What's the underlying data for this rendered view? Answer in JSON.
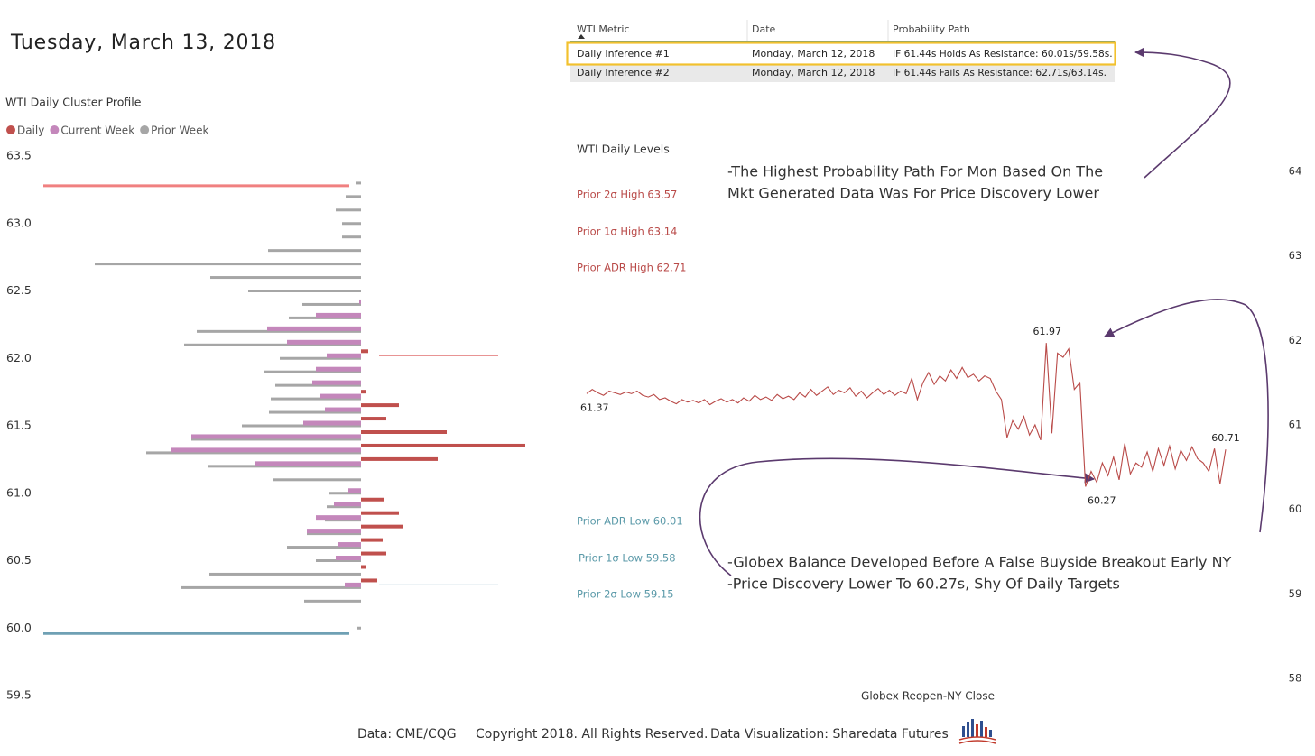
{
  "header": {
    "title": "Tuesday, March 13, 2018"
  },
  "table": {
    "columns": [
      "WTI Metric",
      "Date",
      "Probability Path"
    ],
    "rows": [
      [
        "Daily Inference #1",
        "Monday, March 12, 2018",
        "IF 61.44s Holds As Resistance: 60.01s/59.58s."
      ],
      [
        "Daily Inference #2",
        "Monday, March 12, 2018",
        "IF 61.44s Fails As Resistance: 62.71s/63.14s."
      ]
    ]
  },
  "chart_data": [
    {
      "type": "profile",
      "title": "WTI Daily Cluster Profile",
      "y": [
        63.3,
        63.2,
        63.1,
        63.0,
        62.9,
        62.8,
        62.7,
        62.6,
        62.5,
        62.4,
        62.3,
        62.2,
        62.1,
        62.0,
        61.9,
        61.8,
        61.7,
        61.6,
        61.5,
        61.4,
        61.3,
        61.2,
        61.1,
        61.0,
        60.9,
        60.8,
        60.7,
        60.6,
        60.5,
        60.4,
        60.3,
        60.2,
        60.1,
        60.0
      ],
      "series": [
        {
          "name": "Daily",
          "color": "#c0504d",
          "side": "right",
          "values": [
            null,
            null,
            null,
            null,
            null,
            null,
            null,
            null,
            null,
            null,
            null,
            null,
            8,
            null,
            null,
            6,
            42,
            28,
            95,
            182,
            85,
            null,
            null,
            25,
            42,
            46,
            24,
            28,
            6,
            18,
            null,
            null,
            null,
            null
          ]
        },
        {
          "name": "Current Week",
          "color": "#c487bb",
          "side": "left",
          "values": [
            null,
            null,
            null,
            null,
            null,
            null,
            null,
            null,
            null,
            2,
            50,
            104,
            82,
            38,
            50,
            54,
            45,
            40,
            64,
            188,
            210,
            118,
            null,
            14,
            30,
            50,
            60,
            25,
            28,
            null,
            18,
            null,
            null,
            null
          ]
        },
        {
          "name": "Prior Week",
          "color": "#a6a6a6",
          "side": "left",
          "values": [
            6,
            17,
            28,
            21,
            21,
            103,
            295,
            167,
            125,
            65,
            80,
            182,
            196,
            90,
            107,
            95,
            100,
            102,
            132,
            188,
            238,
            170,
            98,
            36,
            38,
            40,
            60,
            82,
            50,
            168,
            199,
            63,
            null,
            4
          ]
        }
      ],
      "ylim": [
        59.5,
        63.5
      ],
      "yticks": [
        63.5,
        {
          "value": 63,
          "label": "63.0"
        },
        62.5,
        {
          "value": 62,
          "label": "62.0"
        },
        61.5,
        {
          "value": 61,
          "label": "61.0"
        },
        60.5,
        {
          "value": 60,
          "label": "60.0"
        },
        59.5
      ],
      "reference_lines": [
        {
          "value": 63.28,
          "color": "#f08080",
          "side": "left"
        },
        {
          "value": 59.96,
          "color": "#6fa0b4",
          "side": "left"
        },
        {
          "value": 62.02,
          "color": "#e07070",
          "side": "right"
        },
        {
          "value": 60.32,
          "color": "#6fa0b4",
          "side": "right"
        }
      ]
    },
    {
      "type": "line",
      "title": "WTI Daily Levels",
      "xlabel": "Globex Reopen-NY Close",
      "color": "#b94a48",
      "values": [
        61.37,
        61.42,
        61.38,
        61.35,
        61.4,
        61.38,
        61.36,
        61.39,
        61.37,
        61.4,
        61.35,
        61.33,
        61.36,
        61.3,
        61.32,
        61.28,
        61.25,
        61.3,
        61.27,
        61.29,
        61.26,
        61.3,
        61.24,
        61.28,
        61.31,
        61.27,
        61.3,
        61.26,
        61.32,
        61.28,
        61.35,
        61.3,
        61.33,
        61.29,
        61.36,
        61.31,
        61.34,
        61.3,
        61.38,
        61.33,
        61.42,
        61.35,
        61.4,
        61.45,
        61.36,
        61.41,
        61.38,
        61.44,
        61.34,
        61.4,
        61.32,
        61.38,
        61.43,
        61.36,
        61.41,
        61.35,
        61.4,
        61.37,
        61.55,
        61.3,
        61.5,
        61.62,
        61.48,
        61.58,
        61.52,
        61.65,
        61.55,
        61.68,
        61.56,
        61.6,
        61.52,
        61.58,
        61.55,
        61.4,
        61.3,
        60.85,
        61.05,
        60.95,
        61.1,
        60.88,
        61.0,
        60.82,
        61.97,
        60.9,
        61.85,
        61.8,
        61.9,
        61.42,
        61.5,
        60.27,
        60.45,
        60.32,
        60.55,
        60.4,
        60.62,
        60.35,
        60.78,
        60.42,
        60.55,
        60.5,
        60.68,
        60.45,
        60.72,
        60.52,
        60.75,
        60.48,
        60.7,
        60.58,
        60.74,
        60.6,
        60.55,
        60.45,
        60.72,
        60.3,
        60.71
      ],
      "ylim": [
        58,
        64
      ],
      "yticks": [
        58,
        59,
        60,
        61,
        62,
        63,
        64
      ],
      "y_axis": "right",
      "annotations": [
        "Prior 2σ High 63.57",
        "Prior 1σ High 63.14",
        "Prior ADR High 62.71",
        "Prior ADR Low 60.01",
        "Prior 1σ Low 59.58",
        "Prior 2σ Low 59.15"
      ],
      "notes": [
        "-The Highest Probability Path For Mon Based On The",
        "Mkt Generated Data Was For Price Discovery Lower",
        "-Globex Balance Developed Before A False Buyside Breakout Early NY",
        "-Price Discovery Lower To 60.27s, Shy Of Daily Targets"
      ]
    }
  ],
  "footer": [
    "Data: CME/CQG",
    "Copyright 2018. All Rights Reserved.",
    "Data Visualization: Sharedata Futures"
  ]
}
